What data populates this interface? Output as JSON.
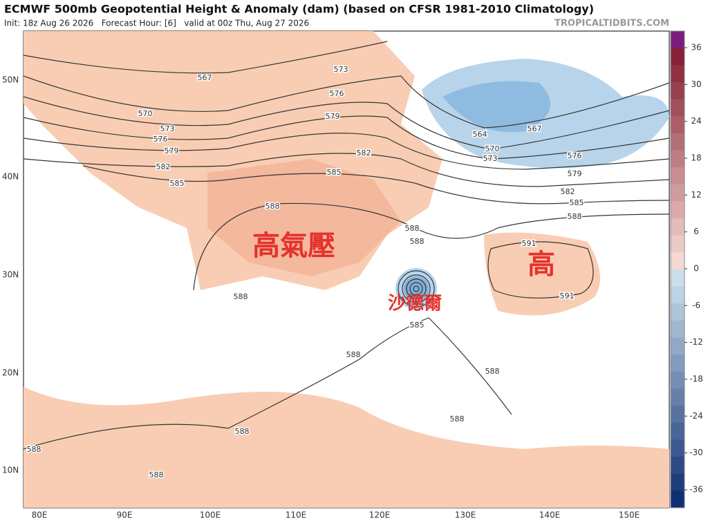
{
  "header": {
    "title": "ECMWF 500mb Geopotential Height & Anomaly (dam) (based on CFSR 1981-2010 Climatology)",
    "subtitle": "Init: 18z Aug 26 2026   Forecast Hour: [6]   valid at 00z Thu, Aug 27 2026",
    "credit": "TROPICALTIDBITS.COM"
  },
  "map": {
    "longitude_labels": [
      "80E",
      "90E",
      "100E",
      "110E",
      "120E",
      "130E",
      "140E",
      "150E"
    ],
    "latitude_labels": [
      "50N",
      "40N",
      "30N",
      "20N",
      "10N"
    ],
    "contour_labels": [
      "567",
      "570",
      "573",
      "576",
      "579",
      "582",
      "585",
      "573",
      "576",
      "579",
      "582",
      "585",
      "588",
      "588",
      "588",
      "564",
      "570",
      "573",
      "567",
      "576",
      "579",
      "582",
      "585",
      "588",
      "591",
      "591",
      "588",
      "585",
      "588",
      "588",
      "588",
      "588",
      "588",
      "588"
    ],
    "annotations": [
      "高氣壓",
      "高",
      "沙德爾"
    ]
  },
  "colorbar": {
    "ticks": [
      36,
      30,
      24,
      18,
      12,
      6,
      0,
      -6,
      -12,
      -18,
      -24,
      -30,
      -36
    ]
  }
}
